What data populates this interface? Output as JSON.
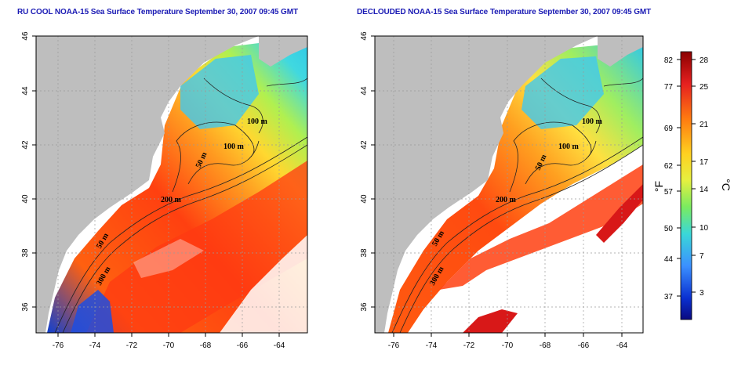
{
  "titles": {
    "left": "RU COOL NOAA-15 Sea Surface Temperature September 30, 2007 09:45 GMT",
    "right": "DECLOUDED NOAA-15 Sea Surface Temperature September 30, 2007 09:45 GMT"
  },
  "map_axes": {
    "longitude_ticks": [
      "-76",
      "-74",
      "-72",
      "-70",
      "-68",
      "-66",
      "-64"
    ],
    "latitude_ticks": [
      "46",
      "44",
      "42",
      "40",
      "38",
      "36"
    ]
  },
  "contour_labels": {
    "c100a": "100 m",
    "c100b": "100 m",
    "c50a": "50 m",
    "c200": "200 m",
    "c50b": "50 m",
    "c300": "300 m"
  },
  "colorbar": {
    "fahrenheit_ticks": [
      "82",
      "77",
      "69",
      "62",
      "57",
      "50",
      "44",
      "37"
    ],
    "celsius_ticks": [
      "28",
      "25",
      "21",
      "17",
      "14",
      "10",
      "7",
      "3"
    ],
    "fahrenheit_unit": "°F",
    "celsius_unit": "°C",
    "colors": [
      "#8b0000",
      "#e62020",
      "#ff7a10",
      "#ffd020",
      "#e6f040",
      "#7aeb60",
      "#3ad8d8",
      "#3b90ff",
      "#0a30d0",
      "#0a0a80"
    ]
  }
}
